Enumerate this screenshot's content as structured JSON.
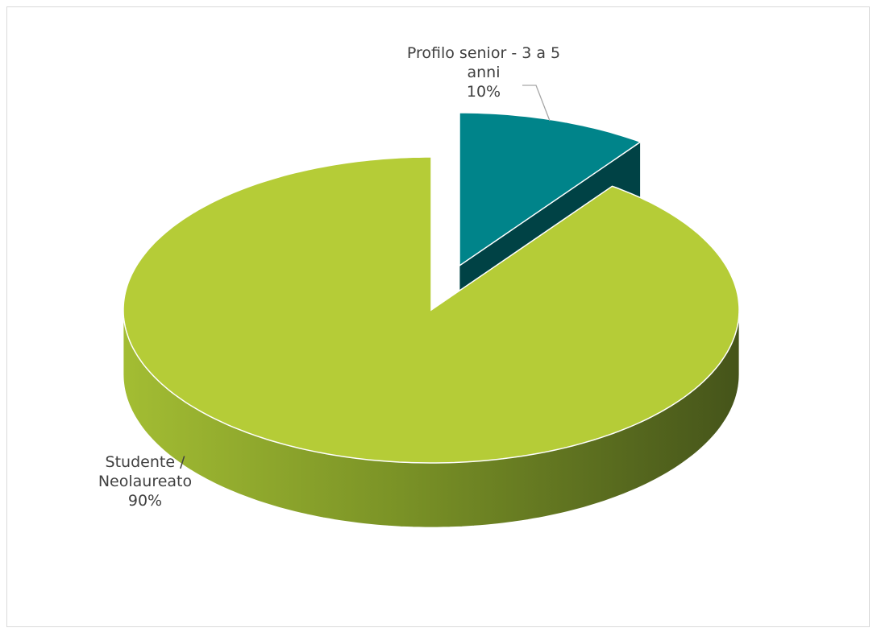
{
  "chart_data": {
    "type": "pie",
    "three_d": true,
    "categories": [
      "Studente / Neolaureato",
      "Profilo senior - 3 a 5 anni"
    ],
    "values": [
      90,
      10
    ],
    "value_labels": [
      "90%",
      "10%"
    ],
    "colors": [
      "#b5cc37",
      "#00848a"
    ],
    "exploded": [
      false,
      true
    ]
  }
}
